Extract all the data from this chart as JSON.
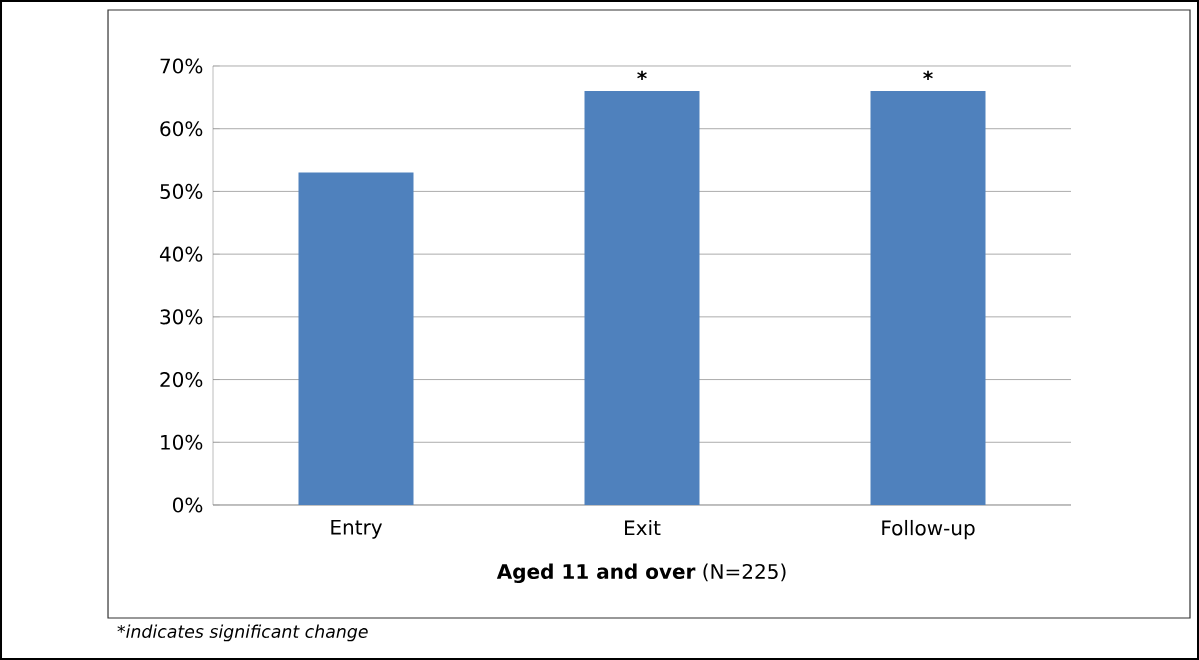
{
  "chart_data": {
    "type": "bar",
    "categories": [
      "Entry",
      "Exit",
      "Follow-up"
    ],
    "values": [
      53,
      66,
      66
    ],
    "color": "#4f81bd",
    "xlabel": "**Aged 11 and over** (N=225)",
    "ylim": [
      0,
      70
    ],
    "yticks": [
      {
        "value": 0,
        "label": "0%"
      },
      {
        "value": 10,
        "label": "10%"
      },
      {
        "value": 20,
        "label": "20%"
      },
      {
        "value": 30,
        "label": "30%"
      },
      {
        "value": 40,
        "label": "40%"
      },
      {
        "value": 50,
        "label": "50%"
      },
      {
        "value": 60,
        "label": "60%"
      },
      {
        "value": 70,
        "label": "70%"
      }
    ],
    "grid": "y",
    "annotations": [
      {
        "text": "*",
        "x": "Exit",
        "y": 66
      },
      {
        "text": "*",
        "x": "Follow-up",
        "y": 66
      },
      "*indicates significant change"
    ]
  }
}
